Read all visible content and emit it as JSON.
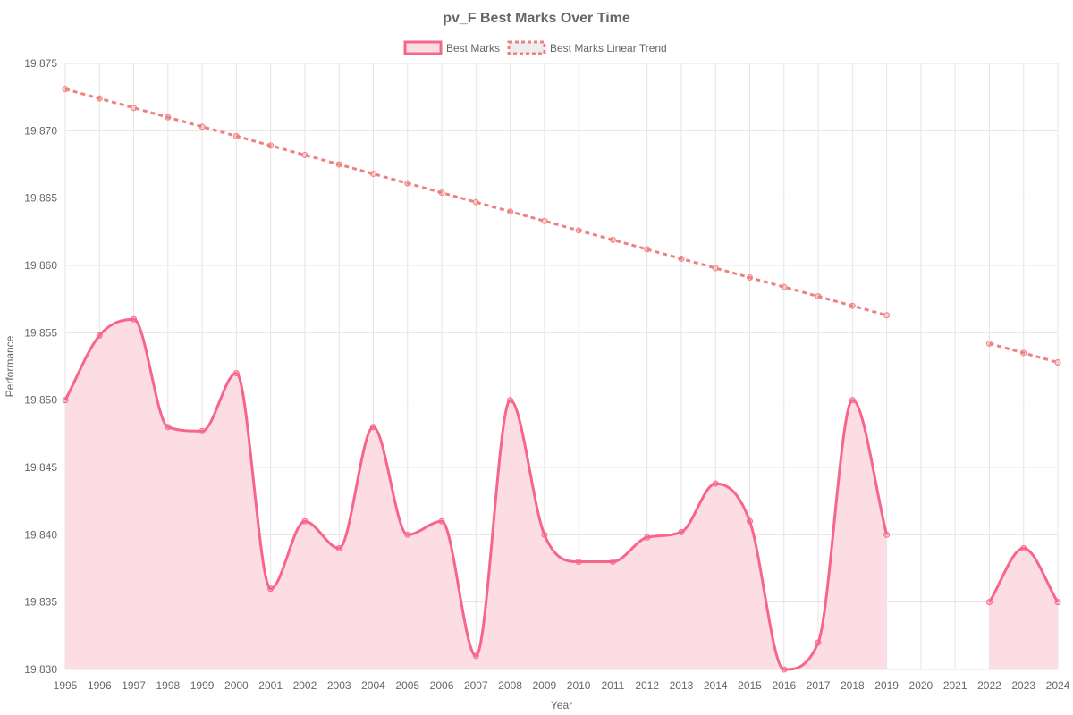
{
  "chart_data": {
    "type": "line",
    "title": "pv_F Best Marks Over Time",
    "xlabel": "Year",
    "ylabel": "Performance",
    "x": [
      1995,
      1996,
      1997,
      1998,
      1999,
      2000,
      2001,
      2002,
      2003,
      2004,
      2005,
      2006,
      2007,
      2008,
      2009,
      2010,
      2011,
      2012,
      2013,
      2014,
      2015,
      2016,
      2017,
      2018,
      2019,
      2020,
      2021,
      2022,
      2023,
      2024
    ],
    "ylim": [
      19830,
      19875
    ],
    "ytick_step": 5,
    "ytick_labels": [
      "19,830",
      "19,835",
      "19,840",
      "19,845",
      "19,850",
      "19,855",
      "19,860",
      "19,865",
      "19,870",
      "19,875"
    ],
    "grid": true,
    "legend_position": "top",
    "series": [
      {
        "name": "Best Marks",
        "color": "#f7668a",
        "fill": "#fcdde4",
        "style": "solid-filled",
        "values": [
          19850,
          19854.8,
          19856,
          19848,
          19847.7,
          19852,
          19836,
          19841,
          19839,
          19848,
          19840,
          19841,
          19831,
          19850,
          19840,
          19838,
          19838,
          19839.8,
          19840.2,
          19843.8,
          19841,
          19830,
          19832,
          19850,
          19840,
          null,
          null,
          19835,
          19839,
          19835
        ]
      },
      {
        "name": "Best Marks Linear Trend",
        "color": "#f08080",
        "fill": "#ededed",
        "style": "dashed",
        "values": [
          19873.1,
          19872.4,
          19871.7,
          19871.0,
          19870.3,
          19869.6,
          19868.9,
          19868.2,
          19867.5,
          19866.8,
          19866.1,
          19865.4,
          19864.7,
          19864.0,
          19863.3,
          19862.6,
          19861.9,
          19861.2,
          19860.5,
          19859.8,
          19859.1,
          19858.4,
          19857.7,
          19857.0,
          19856.3,
          null,
          null,
          19854.2,
          19853.5,
          19852.8
        ]
      }
    ]
  }
}
